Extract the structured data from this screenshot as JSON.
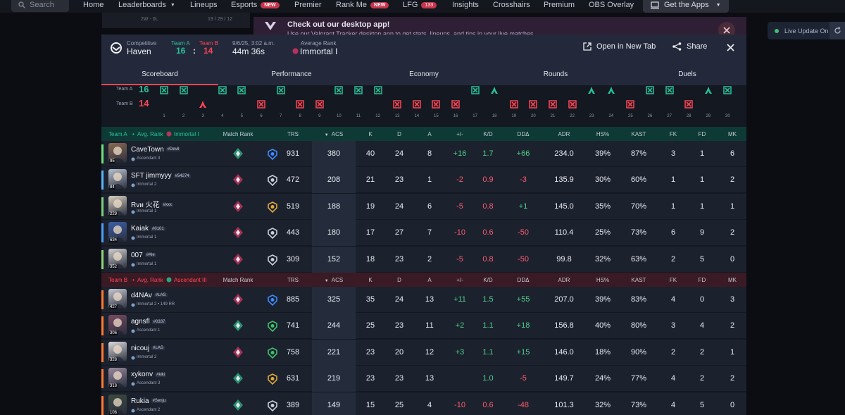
{
  "nav": {
    "search_placeholder": "Search",
    "items": [
      "Home",
      "Leaderboards",
      "Lineups",
      "Esports",
      "Premier",
      "Rank Me",
      "LFG",
      "Insights",
      "Crosshairs",
      "Premium",
      "OBS Overlay"
    ],
    "new_badge": "NEW",
    "lfg_count": "133",
    "get_apps": "Get the Apps"
  },
  "bg": {
    "record": "2W - 0L",
    "date": "19 / 29 / 12"
  },
  "banner": {
    "title": "Check out our desktop app!",
    "subtitle": "Use our Valorant Tracker desktop app to get stats, lineups, and tips in your live matches"
  },
  "live_update": "Live Update On",
  "header": {
    "mode": "Competitive",
    "map": "Haven",
    "team_a_label": "Team A",
    "team_b_label": "Team B",
    "team_a_score": "16",
    "team_b_score": "14",
    "colon": ":",
    "date": "9/6/25, 3:02 a.m.",
    "duration": "44m 36s",
    "avg_rank_label": "Average Rank",
    "avg_rank": "Immortal I",
    "open_new_tab": "Open in New Tab",
    "share": "Share"
  },
  "tabs": [
    "Scoreboard",
    "Performance",
    "Economy",
    "Rounds",
    "Duels"
  ],
  "rounds": {
    "team_a_label": "Team A",
    "team_b_label": "Team B",
    "team_a_score": "16",
    "team_b_score": "14",
    "numbers": [
      "1",
      "2",
      "3",
      "4",
      "5",
      "6",
      "7",
      "8",
      "9",
      "10",
      "11",
      "12",
      "13",
      "14",
      "15",
      "16",
      "17",
      "18",
      "19",
      "20",
      "21",
      "22",
      "23",
      "24",
      "25",
      "26",
      "27",
      "28",
      "29",
      "30"
    ],
    "winners": [
      "A",
      "A",
      "B",
      "A",
      "A",
      "B",
      "A",
      "B",
      "B",
      "A",
      "A",
      "A",
      "B",
      "B",
      "B",
      "B",
      "A",
      "A",
      "B",
      "B",
      "B",
      "B",
      "A",
      "A",
      "B",
      "A",
      "A",
      "B",
      "A",
      "A"
    ],
    "win_types": [
      "elim",
      "elim",
      "defuse",
      "elim",
      "elim",
      "elim",
      "elim",
      "elim",
      "elim",
      "elim",
      "elim",
      "elim",
      "elim",
      "elim",
      "elim",
      "elim",
      "elim",
      "defuse",
      "elim",
      "elim",
      "elim",
      "elim",
      "defuse",
      "defuse",
      "elim",
      "elim",
      "elim",
      "elim",
      "defuse",
      "elim"
    ]
  },
  "columns": [
    "Match Rank",
    "TRS",
    "ACS",
    "K",
    "D",
    "A",
    "+/-",
    "K/D",
    "DDΔ",
    "ADR",
    "HS%",
    "KAST",
    "FK",
    "FD",
    "MK"
  ],
  "team_a": {
    "label": "Team A",
    "avg_rank_label": "Avg. Rank",
    "avg_rank": "Immortal I",
    "color": "#27c29c",
    "players": [
      {
        "name": "CaveTown",
        "tag": "#Devil",
        "rank": "Ascendant 3",
        "level": "95",
        "trs": "931",
        "acs": "380",
        "k": "40",
        "d": "24",
        "a": "8",
        "pm": "+16",
        "kd": "1.7",
        "dd": "+66",
        "adr": "234.0",
        "hs": "39%",
        "kast": "87%",
        "fk": "3",
        "fd": "1",
        "mk": "6"
      },
      {
        "name": "SFT jimmyyy",
        "tag": "#54274",
        "rank": "Immortal 2",
        "level": "84",
        "trs": "472",
        "acs": "208",
        "k": "21",
        "d": "23",
        "a": "1",
        "pm": "-2",
        "kd": "0.9",
        "dd": "-3",
        "adr": "135.9",
        "hs": "30%",
        "kast": "60%",
        "fk": "1",
        "fd": "1",
        "mk": "2"
      },
      {
        "name": "Rvи 火花",
        "tag": "#xxx",
        "rank": "Immortal 1",
        "level": "229",
        "trs": "519",
        "acs": "188",
        "k": "19",
        "d": "24",
        "a": "6",
        "pm": "-5",
        "kd": "0.8",
        "dd": "+1",
        "adr": "145.0",
        "hs": "35%",
        "kast": "70%",
        "fk": "1",
        "fd": "1",
        "mk": "1"
      },
      {
        "name": "Kaiak",
        "tag": "#0101",
        "rank": "Immortal 1",
        "level": "634",
        "trs": "443",
        "acs": "180",
        "k": "17",
        "d": "27",
        "a": "7",
        "pm": "-10",
        "kd": "0.6",
        "dd": "-50",
        "adr": "110.4",
        "hs": "25%",
        "kast": "73%",
        "fk": "6",
        "fd": "9",
        "mk": "2"
      },
      {
        "name": "007",
        "tag": "#Ale",
        "rank": "Immortal 1",
        "level": "352",
        "trs": "309",
        "acs": "152",
        "k": "18",
        "d": "23",
        "a": "2",
        "pm": "-5",
        "kd": "0.8",
        "dd": "-50",
        "adr": "99.8",
        "hs": "32%",
        "kast": "63%",
        "fk": "2",
        "fd": "5",
        "mk": "0"
      }
    ]
  },
  "team_b": {
    "label": "Team B",
    "avg_rank_label": "Avg. Rank",
    "avg_rank": "Ascendant III",
    "color": "#ff4655",
    "players": [
      {
        "name": "d4NAv",
        "tag": "#LAS",
        "rank": "Immortal 2 • 149 RR",
        "level": "427",
        "trs": "885",
        "acs": "325",
        "k": "35",
        "d": "24",
        "a": "13",
        "pm": "+11",
        "kd": "1.5",
        "dd": "+55",
        "adr": "207.0",
        "hs": "39%",
        "kast": "83%",
        "fk": "4",
        "fd": "0",
        "mk": "3"
      },
      {
        "name": "agnsfl",
        "tag": "#0337",
        "rank": "Ascendant 1",
        "level": "306",
        "trs": "741",
        "acs": "244",
        "k": "25",
        "d": "23",
        "a": "11",
        "pm": "+2",
        "kd": "1.1",
        "dd": "+18",
        "adr": "156.8",
        "hs": "40%",
        "kast": "80%",
        "fk": "3",
        "fd": "4",
        "mk": "2"
      },
      {
        "name": "nicouj",
        "tag": "#LAS",
        "rank": "Immortal 2",
        "level": "328",
        "trs": "758",
        "acs": "221",
        "k": "23",
        "d": "20",
        "a": "12",
        "pm": "+3",
        "kd": "1.1",
        "dd": "+15",
        "adr": "146.0",
        "hs": "18%",
        "kast": "90%",
        "fk": "2",
        "fd": "2",
        "mk": "1"
      },
      {
        "name": "xykonv",
        "tag": "#kiki",
        "rank": "Ascendant 3",
        "level": "318",
        "trs": "631",
        "acs": "219",
        "k": "23",
        "d": "23",
        "a": "13",
        "pm": "",
        "kd": "1.0",
        "dd": "-5",
        "adr": "149.7",
        "hs": "24%",
        "kast": "77%",
        "fk": "4",
        "fd": "2",
        "mk": "2"
      },
      {
        "name": "Rukia",
        "tag": "#Senju",
        "rank": "Ascendant 2",
        "level": "106",
        "trs": "389",
        "acs": "149",
        "k": "15",
        "d": "25",
        "a": "4",
        "pm": "-10",
        "kd": "0.6",
        "dd": "-48",
        "adr": "101.3",
        "hs": "32%",
        "kast": "73%",
        "fk": "4",
        "fd": "5",
        "mk": "0"
      }
    ]
  }
}
